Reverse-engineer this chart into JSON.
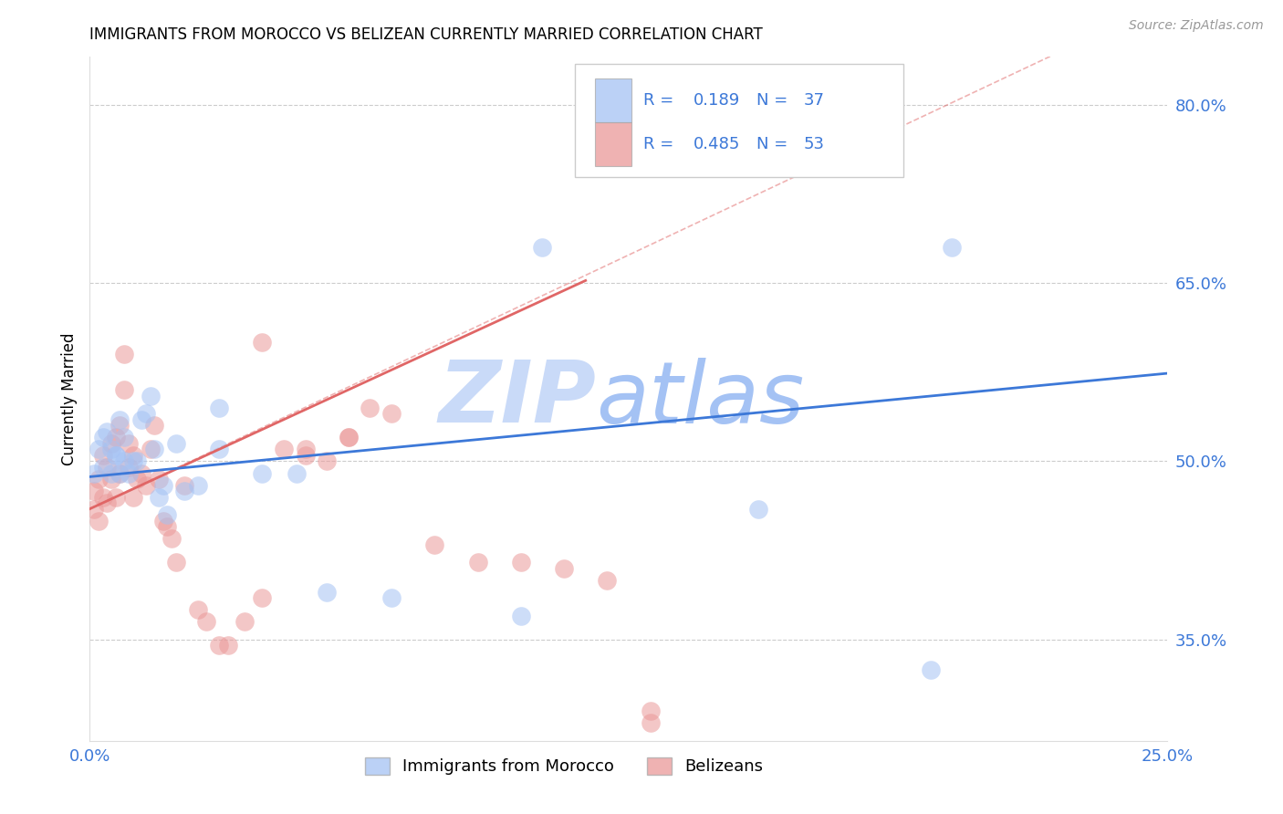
{
  "title": "IMMIGRANTS FROM MOROCCO VS BELIZEAN CURRENTLY MARRIED CORRELATION CHART",
  "source": "Source: ZipAtlas.com",
  "ylabel": "Currently Married",
  "y_ticks": [
    0.35,
    0.5,
    0.65,
    0.8
  ],
  "y_tick_labels": [
    "35.0%",
    "50.0%",
    "65.0%",
    "80.0%"
  ],
  "xlim": [
    0.0,
    0.25
  ],
  "ylim": [
    0.265,
    0.84
  ],
  "r_blue": 0.189,
  "n_blue": 37,
  "r_pink": 0.485,
  "n_pink": 53,
  "blue_color": "#a4c2f4",
  "pink_color": "#ea9999",
  "legend_text_color": "#3c78d8",
  "trend_blue_color": "#3c78d8",
  "trend_pink_color": "#e06666",
  "dash_color": "#e06666",
  "watermark_zip_color": "#c9daf8",
  "watermark_atlas_color": "#a4c2f4",
  "legend_label_blue": "Immigrants from Morocco",
  "legend_label_pink": "Belizeans",
  "blue_x": [
    0.001,
    0.002,
    0.003,
    0.003,
    0.004,
    0.005,
    0.005,
    0.006,
    0.006,
    0.007,
    0.007,
    0.008,
    0.008,
    0.009,
    0.01,
    0.011,
    0.012,
    0.013,
    0.014,
    0.015,
    0.016,
    0.017,
    0.018,
    0.02,
    0.022,
    0.025,
    0.03,
    0.03,
    0.04,
    0.048,
    0.055,
    0.07,
    0.1,
    0.155,
    0.195,
    0.2,
    0.105
  ],
  "blue_y": [
    0.49,
    0.51,
    0.495,
    0.52,
    0.525,
    0.51,
    0.49,
    0.505,
    0.505,
    0.535,
    0.49,
    0.5,
    0.52,
    0.49,
    0.5,
    0.5,
    0.535,
    0.54,
    0.555,
    0.51,
    0.47,
    0.48,
    0.455,
    0.515,
    0.475,
    0.48,
    0.51,
    0.545,
    0.49,
    0.49,
    0.39,
    0.385,
    0.37,
    0.46,
    0.325,
    0.68,
    0.68
  ],
  "pink_x": [
    0.001,
    0.001,
    0.002,
    0.002,
    0.003,
    0.003,
    0.004,
    0.004,
    0.005,
    0.005,
    0.006,
    0.006,
    0.007,
    0.007,
    0.008,
    0.008,
    0.009,
    0.009,
    0.01,
    0.01,
    0.011,
    0.012,
    0.013,
    0.014,
    0.015,
    0.016,
    0.017,
    0.018,
    0.019,
    0.02,
    0.022,
    0.025,
    0.027,
    0.03,
    0.032,
    0.036,
    0.04,
    0.045,
    0.05,
    0.055,
    0.06,
    0.065,
    0.07,
    0.08,
    0.09,
    0.1,
    0.11,
    0.12,
    0.13,
    0.04,
    0.05,
    0.06,
    0.13
  ],
  "pink_y": [
    0.46,
    0.475,
    0.45,
    0.485,
    0.47,
    0.505,
    0.495,
    0.465,
    0.485,
    0.515,
    0.52,
    0.47,
    0.53,
    0.49,
    0.56,
    0.59,
    0.515,
    0.495,
    0.47,
    0.505,
    0.485,
    0.49,
    0.48,
    0.51,
    0.53,
    0.485,
    0.45,
    0.445,
    0.435,
    0.415,
    0.48,
    0.375,
    0.365,
    0.345,
    0.345,
    0.365,
    0.385,
    0.51,
    0.505,
    0.5,
    0.52,
    0.545,
    0.54,
    0.43,
    0.415,
    0.415,
    0.41,
    0.4,
    0.29,
    0.6,
    0.51,
    0.52,
    0.28
  ],
  "blue_trend": [
    0.0,
    0.487,
    0.25,
    0.574
  ],
  "pink_trend": [
    0.0,
    0.46,
    0.115,
    0.652
  ],
  "dash_line": [
    0.0,
    0.46,
    0.25,
    0.887
  ]
}
